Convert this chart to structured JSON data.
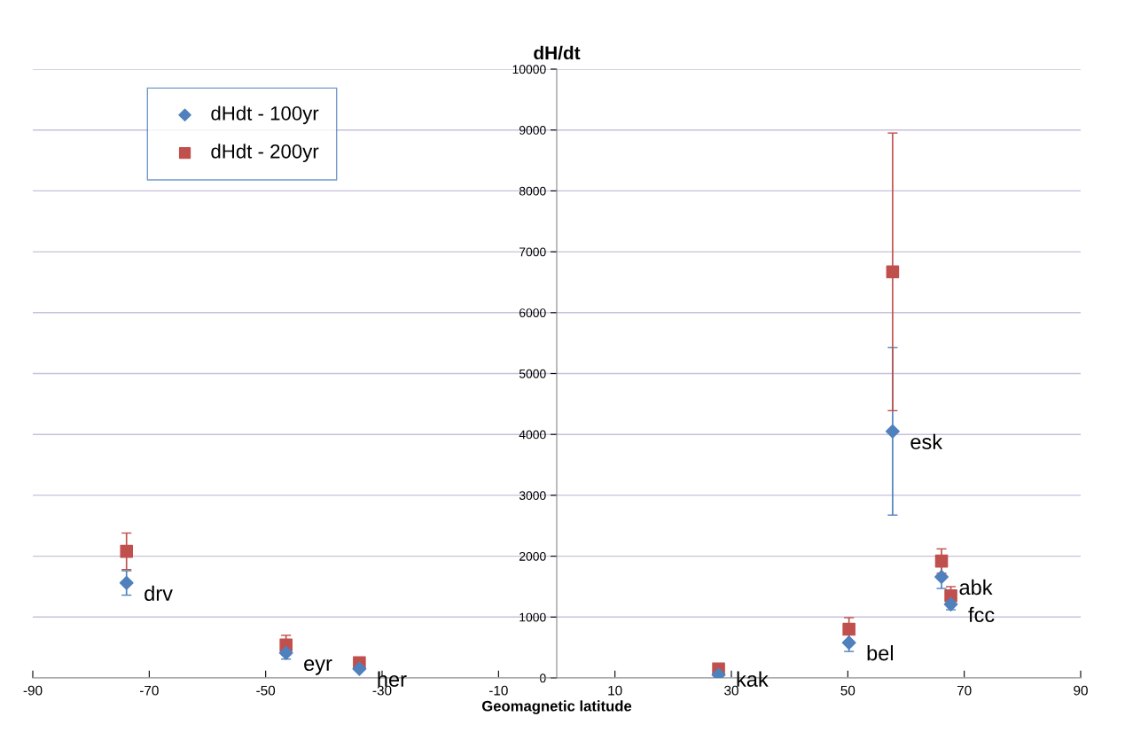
{
  "chart_data": {
    "type": "scatter",
    "title": "dH/dt",
    "xlabel": "Geomagnetic latitude",
    "series": [
      {
        "name": "dHdt - 100yr",
        "color": "#4f81bd",
        "marker": "diamond",
        "x": [
          -73.9,
          -46.5,
          -33.9,
          27.8,
          50.2,
          57.7,
          66.1,
          67.7
        ],
        "values": [
          1560,
          410,
          150,
          50,
          580,
          4050,
          1660,
          1210
        ],
        "errors": [
          200,
          100,
          null,
          null,
          145,
          1375,
          190,
          90
        ]
      },
      {
        "name": "dHdt - 200yr",
        "color": "#c0504d",
        "marker": "square",
        "x": [
          -73.9,
          -46.5,
          -33.9,
          27.8,
          50.2,
          57.7,
          66.1,
          67.7
        ],
        "values": [
          2080,
          540,
          250,
          150,
          800,
          6670,
          1920,
          1350
        ],
        "errors": [
          300,
          160,
          null,
          null,
          190,
          2280,
          200,
          150
        ]
      }
    ],
    "annotations": [
      {
        "text": "drv",
        "x": -73.9,
        "y": 1560
      },
      {
        "text": "eyr",
        "x": -46.5,
        "y": 410
      },
      {
        "text": "her",
        "x": -33.9,
        "y": 150
      },
      {
        "text": "kak",
        "x": 27.8,
        "y": 150
      },
      {
        "text": "bel",
        "x": 50.2,
        "y": 580
      },
      {
        "text": "esk",
        "x": 57.7,
        "y": 4050
      },
      {
        "text": "abk",
        "x": 66.1,
        "y": 1660
      },
      {
        "text": "fcc",
        "x": 67.7,
        "y": 1210
      }
    ],
    "xlim": [
      -90,
      90
    ],
    "xticks": [
      -90,
      -70,
      -50,
      -30,
      -10,
      10,
      30,
      50,
      70,
      90
    ],
    "ylim": [
      0,
      10000
    ],
    "yticks": [
      0,
      1000,
      2000,
      3000,
      4000,
      5000,
      6000,
      7000,
      8000,
      9000,
      10000
    ],
    "grid": "y",
    "legend": "top left"
  }
}
